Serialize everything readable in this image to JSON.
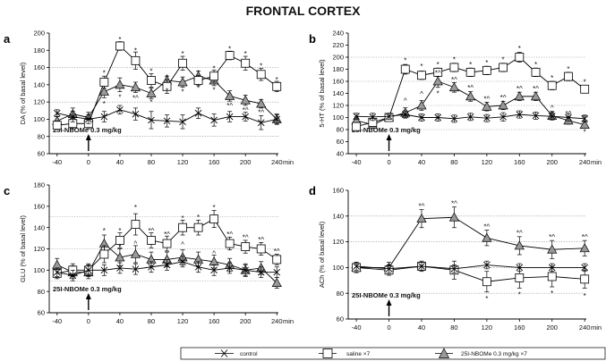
{
  "title": "FRONTAL CORTEX",
  "legend": {
    "control": "control",
    "saline": "saline ×7",
    "drug": "25I-NBOMe 0.3 mg/kg ×7"
  },
  "chart_data": [
    {
      "panel": "a",
      "type": "line",
      "ylabel": "DA (% of basal level)",
      "xunit": "min",
      "ylim": [
        60,
        200
      ],
      "yticks": [
        60,
        80,
        100,
        120,
        140,
        160,
        180,
        200
      ],
      "xticks": [
        -40,
        0,
        40,
        80,
        120,
        160,
        200,
        240
      ],
      "gridlines": [
        80,
        120,
        160
      ],
      "treatment": "25I-NBOMe 0.3 mg/kg",
      "x": [
        -40,
        -20,
        0,
        20,
        40,
        60,
        80,
        100,
        120,
        140,
        160,
        180,
        200,
        220,
        240
      ],
      "series": [
        {
          "name": "control",
          "values": [
            107,
            103,
            100,
            103,
            111,
            106,
            99,
            98,
            97,
            107,
            99,
            103,
            103,
            96,
            100
          ],
          "err": [
            4,
            6,
            5,
            6,
            5,
            7,
            10,
            7,
            8,
            6,
            7,
            6,
            5,
            8,
            6
          ]
        },
        {
          "name": "saline",
          "values": [
            93,
            95,
            95,
            143,
            185,
            168,
            145,
            138,
            165,
            145,
            150,
            174,
            165,
            152,
            138
          ],
          "err": [
            5,
            6,
            6,
            7,
            5,
            10,
            8,
            8,
            8,
            6,
            7,
            5,
            8,
            7,
            6
          ]
        },
        {
          "name": "drug",
          "values": [
            98,
            106,
            102,
            132,
            140,
            137,
            130,
            145,
            143,
            150,
            145,
            127,
            122,
            118,
            100
          ],
          "err": [
            5,
            7,
            6,
            7,
            8,
            6,
            6,
            5,
            6,
            6,
            6,
            6,
            6,
            5,
            5
          ]
        }
      ],
      "annotations": [
        {
          "x": 20,
          "y": 154,
          "text": "*"
        },
        {
          "x": 40,
          "y": 193,
          "text": "*"
        },
        {
          "x": 60,
          "y": 180,
          "text": "*"
        },
        {
          "x": 80,
          "y": 156,
          "text": "*"
        },
        {
          "x": 100,
          "y": 149,
          "text": "*"
        },
        {
          "x": 120,
          "y": 176,
          "text": "*"
        },
        {
          "x": 140,
          "y": 154,
          "text": "*"
        },
        {
          "x": 160,
          "y": 159,
          "text": "*"
        },
        {
          "x": 180,
          "y": 182,
          "text": "*"
        },
        {
          "x": 200,
          "y": 176,
          "text": "*"
        },
        {
          "x": 220,
          "y": 162,
          "text": "*"
        },
        {
          "x": 240,
          "y": 146,
          "text": "*"
        },
        {
          "x": 20,
          "y": 118,
          "text": "*"
        },
        {
          "x": 40,
          "y": 126,
          "text": "*"
        },
        {
          "x": 60,
          "y": 125,
          "text": "*^"
        },
        {
          "x": 80,
          "y": 120,
          "text": "*"
        },
        {
          "x": 100,
          "y": 133,
          "text": "*"
        },
        {
          "x": 120,
          "y": 132,
          "text": "*"
        },
        {
          "x": 140,
          "y": 136,
          "text": "*"
        },
        {
          "x": 160,
          "y": 134,
          "text": "*"
        },
        {
          "x": 180,
          "y": 116,
          "text": "*^"
        },
        {
          "x": 200,
          "y": 111,
          "text": "*^"
        },
        {
          "x": 220,
          "y": 108,
          "text": "*^"
        }
      ]
    },
    {
      "panel": "b",
      "type": "line",
      "ylabel": "5-HT (% of basal level)",
      "xunit": "min",
      "ylim": [
        40,
        240
      ],
      "yticks": [
        40,
        60,
        80,
        100,
        120,
        140,
        160,
        180,
        200,
        220,
        240
      ],
      "xticks": [
        -40,
        0,
        40,
        80,
        120,
        160,
        200,
        240
      ],
      "gridlines": [
        80,
        120,
        160,
        200
      ],
      "treatment": "25I-NBOMe 0.3 mg/kg",
      "x": [
        -40,
        -20,
        0,
        20,
        40,
        60,
        80,
        100,
        120,
        140,
        160,
        180,
        200,
        220,
        240
      ],
      "series": [
        {
          "name": "control",
          "values": [
            102,
            101,
            102,
            105,
            100,
            100,
            98,
            101,
            99,
            101,
            105,
            103,
            102,
            100,
            98
          ],
          "err": [
            5,
            6,
            5,
            6,
            6,
            6,
            6,
            6,
            6,
            7,
            6,
            6,
            6,
            6,
            6
          ]
        },
        {
          "name": "saline",
          "values": [
            85,
            92,
            100,
            180,
            170,
            175,
            183,
            175,
            178,
            183,
            200,
            175,
            153,
            168,
            147
          ],
          "err": [
            6,
            6,
            6,
            8,
            7,
            7,
            7,
            7,
            7,
            7,
            8,
            7,
            7,
            7,
            6
          ]
        },
        {
          "name": "drug",
          "values": [
            95,
            88,
            100,
            108,
            120,
            160,
            150,
            135,
            118,
            120,
            135,
            135,
            103,
            95,
            88
          ],
          "err": [
            6,
            6,
            6,
            8,
            8,
            10,
            8,
            8,
            7,
            7,
            7,
            7,
            7,
            6,
            6
          ]
        }
      ],
      "annotations": [
        {
          "x": 20,
          "y": 195,
          "text": "*"
        },
        {
          "x": 40,
          "y": 185,
          "text": "*"
        },
        {
          "x": 60,
          "y": 188,
          "text": "*"
        },
        {
          "x": 80,
          "y": 196,
          "text": "*"
        },
        {
          "x": 100,
          "y": 188,
          "text": "*"
        },
        {
          "x": 120,
          "y": 191,
          "text": "*"
        },
        {
          "x": 140,
          "y": 196,
          "text": "*"
        },
        {
          "x": 160,
          "y": 215,
          "text": "*"
        },
        {
          "x": 180,
          "y": 188,
          "text": "*"
        },
        {
          "x": 200,
          "y": 166,
          "text": "*"
        },
        {
          "x": 220,
          "y": 181,
          "text": "*"
        },
        {
          "x": 240,
          "y": 159,
          "text": "*"
        },
        {
          "x": 20,
          "y": 128,
          "text": "^"
        },
        {
          "x": 40,
          "y": 139,
          "text": "^"
        },
        {
          "x": 60,
          "y": 174,
          "text": "*^"
        },
        {
          "x": 80,
          "y": 163,
          "text": "*^"
        },
        {
          "x": 100,
          "y": 150,
          "text": "*^"
        },
        {
          "x": 120,
          "y": 131,
          "text": "*^"
        },
        {
          "x": 140,
          "y": 133,
          "text": "*^"
        },
        {
          "x": 160,
          "y": 148,
          "text": "*^"
        },
        {
          "x": 180,
          "y": 148,
          "text": "*^"
        },
        {
          "x": 200,
          "y": 116,
          "text": "^"
        },
        {
          "x": 220,
          "y": 107,
          "text": "*^"
        },
        {
          "x": 240,
          "y": 100,
          "text": "*^"
        },
        {
          "x": 60,
          "y": 140,
          "text": "*"
        },
        {
          "x": 240,
          "y": 76,
          "text": "*"
        }
      ]
    },
    {
      "panel": "c",
      "type": "line",
      "ylabel": "GLU (% of basal level)",
      "xunit": "min",
      "ylim": [
        60,
        180
      ],
      "yticks": [
        60,
        80,
        100,
        120,
        140,
        160,
        180
      ],
      "xticks": [
        -40,
        0,
        40,
        80,
        120,
        160,
        200,
        240
      ],
      "gridlines": [
        90,
        120,
        150
      ],
      "treatment": "25I-NBOMe 0.3 mg/kg",
      "x": [
        -40,
        -20,
        0,
        20,
        40,
        60,
        80,
        100,
        120,
        140,
        160,
        180,
        200,
        220,
        240
      ],
      "series": [
        {
          "name": "control",
          "values": [
            98,
            95,
            100,
            100,
            102,
            101,
            103,
            105,
            108,
            103,
            100,
            102,
            100,
            98,
            98
          ],
          "err": [
            4,
            5,
            5,
            5,
            5,
            5,
            5,
            5,
            5,
            5,
            5,
            5,
            5,
            5,
            5
          ]
        },
        {
          "name": "saline",
          "values": [
            97,
            100,
            100,
            115,
            128,
            143,
            128,
            125,
            140,
            140,
            148,
            125,
            122,
            120,
            110
          ],
          "err": [
            5,
            6,
            6,
            8,
            7,
            10,
            7,
            7,
            7,
            7,
            8,
            6,
            6,
            6,
            5
          ]
        },
        {
          "name": "drug",
          "values": [
            105,
            98,
            98,
            125,
            112,
            115,
            110,
            110,
            112,
            110,
            108,
            105,
            100,
            102,
            88
          ],
          "err": [
            6,
            6,
            6,
            8,
            8,
            8,
            7,
            7,
            7,
            7,
            6,
            6,
            6,
            6,
            5
          ]
        }
      ],
      "annotations": [
        {
          "x": 20,
          "y": 137,
          "text": "*"
        },
        {
          "x": 40,
          "y": 137,
          "text": "*"
        },
        {
          "x": 60,
          "y": 159,
          "text": "*"
        },
        {
          "x": 80,
          "y": 137,
          "text": "*^"
        },
        {
          "x": 100,
          "y": 134,
          "text": "*^"
        },
        {
          "x": 120,
          "y": 149,
          "text": "*"
        },
        {
          "x": 140,
          "y": 150,
          "text": "*"
        },
        {
          "x": 160,
          "y": 159,
          "text": "*"
        },
        {
          "x": 180,
          "y": 134,
          "text": "*^"
        },
        {
          "x": 200,
          "y": 131,
          "text": "*^"
        },
        {
          "x": 220,
          "y": 129,
          "text": "*^"
        },
        {
          "x": 240,
          "y": 118,
          "text": "*^"
        },
        {
          "x": 40,
          "y": 122,
          "text": "*"
        },
        {
          "x": 60,
          "y": 125,
          "text": "^"
        },
        {
          "x": 120,
          "y": 124,
          "text": "^"
        },
        {
          "x": 160,
          "y": 116,
          "text": "^"
        }
      ]
    },
    {
      "panel": "d",
      "type": "line",
      "ylabel": "ACh (% of basal level)",
      "xunit": "min",
      "ylim": [
        60,
        160
      ],
      "yticks": [
        60,
        80,
        100,
        120,
        140,
        160
      ],
      "xticks": [
        -40,
        0,
        40,
        80,
        120,
        160,
        200,
        240
      ],
      "gridlines": [
        80,
        100,
        120,
        140
      ],
      "treatment": "25I-NBOMe 0.3 mg/kg",
      "x": [
        -40,
        0,
        40,
        80,
        120,
        160,
        200,
        240
      ],
      "series": [
        {
          "name": "control",
          "values": [
            101,
            99,
            101,
            99,
            102,
            100,
            100,
            100
          ],
          "err": [
            3,
            3,
            3,
            3,
            3,
            3,
            3,
            3
          ]
        },
        {
          "name": "saline",
          "values": [
            100,
            98,
            101,
            98,
            89,
            92,
            93,
            91
          ],
          "err": [
            4,
            4,
            4,
            7,
            8,
            8,
            8,
            7
          ]
        },
        {
          "name": "drug",
          "values": [
            100,
            100,
            138,
            139,
            123,
            117,
            114,
            115
          ],
          "err": [
            4,
            4,
            7,
            8,
            6,
            7,
            7,
            6
          ]
        }
      ],
      "annotations": [
        {
          "x": 40,
          "y": 148,
          "text": "*^"
        },
        {
          "x": 80,
          "y": 150,
          "text": "*^"
        },
        {
          "x": 120,
          "y": 132,
          "text": "*^"
        },
        {
          "x": 160,
          "y": 127,
          "text": "*^"
        },
        {
          "x": 200,
          "y": 124,
          "text": "*^"
        },
        {
          "x": 240,
          "y": 124,
          "text": "*^"
        },
        {
          "x": 120,
          "y": 76,
          "text": "*"
        },
        {
          "x": 160,
          "y": 79,
          "text": "*"
        },
        {
          "x": 200,
          "y": 80,
          "text": "*"
        },
        {
          "x": 240,
          "y": 78,
          "text": "*"
        }
      ]
    }
  ]
}
